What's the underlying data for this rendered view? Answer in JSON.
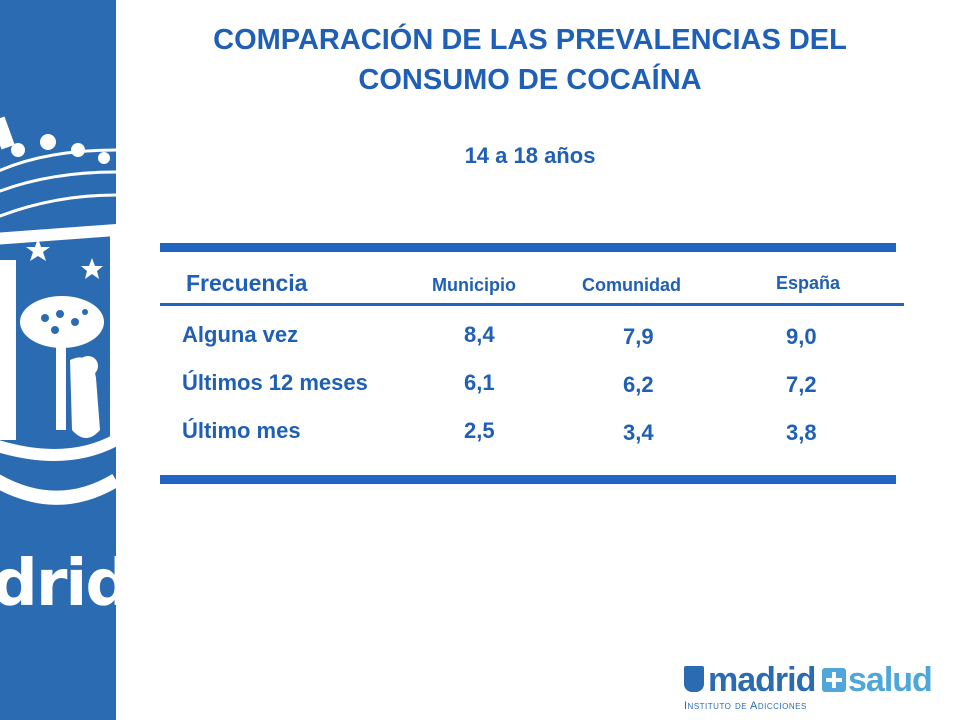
{
  "title": {
    "line1": "COMPARACIÓN DE LAS PREVALENCIAS DEL",
    "line2": "CONSUMO DE COCAÍNA"
  },
  "subtitle": "14 a 18 años",
  "table": {
    "headers": [
      "Frecuencia",
      "Municipio",
      "Comunidad",
      "España"
    ],
    "rows": [
      {
        "label": "Alguna vez",
        "municipio": "8,4",
        "comunidad": "7,9",
        "espana": "9,0"
      },
      {
        "label": "Últimos 12 meses",
        "municipio": "6,1",
        "comunidad": "6,2",
        "espana": "7,2"
      },
      {
        "label": "Último mes",
        "municipio": "2,5",
        "comunidad": "3,4",
        "espana": "3,8"
      }
    ]
  },
  "sidebar": {
    "crest_text": "drid",
    "emblem": "madrid-coat-of-arms"
  },
  "logo": {
    "brand_left": "madrid",
    "brand_right": "salud",
    "tagline": "Instituto de Adicciones"
  },
  "colors": {
    "primary": "#1f5fb5",
    "sidebar": "#2b6bb2",
    "accent": "#4fa6d8"
  }
}
